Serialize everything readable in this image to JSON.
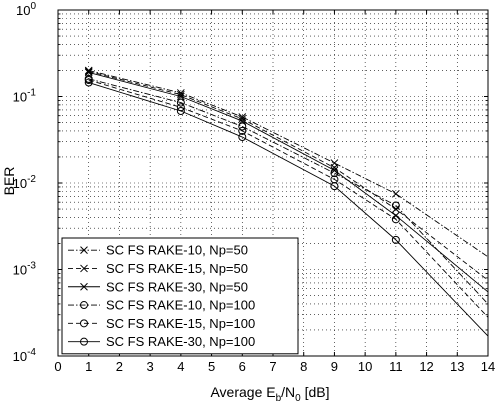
{
  "chart_data": {
    "type": "line",
    "title": "",
    "xlabel": "Average E_b/N_0 [dB]",
    "xlabel_parts": {
      "pre": "Average E",
      "sub1": "b",
      "mid": "/N",
      "sub2": "0",
      "post": " [dB]"
    },
    "ylabel": "BER",
    "xlim": [
      0,
      14
    ],
    "ylim": [
      0.0001,
      1
    ],
    "yscale": "log",
    "grid": "on",
    "legend_position": "bottom-left",
    "xticks": [
      "0",
      "1",
      "2",
      "3",
      "4",
      "5",
      "6",
      "7",
      "8",
      "9",
      "10",
      "11",
      "12",
      "13",
      "14"
    ],
    "yticks": [
      {
        "value": 1,
        "base": "10",
        "exp": "0"
      },
      {
        "value": 0.1,
        "base": "10",
        "exp": "-1"
      },
      {
        "value": 0.01,
        "base": "10",
        "exp": "-2"
      },
      {
        "value": 0.001,
        "base": "10",
        "exp": "-3"
      },
      {
        "value": 0.0001,
        "base": "10",
        "exp": "-4"
      }
    ],
    "series": [
      {
        "name": "SC FS RAKE-10, Np=50",
        "dash": "dashdot",
        "marker": "x",
        "x": [
          1,
          4,
          6,
          9,
          11,
          14
        ],
        "y": [
          0.2,
          0.11,
          0.058,
          0.017,
          0.0075,
          0.0014
        ]
      },
      {
        "name": "SC FS RAKE-15, Np=50",
        "dash": "dashed",
        "marker": "x",
        "x": [
          1,
          4,
          6,
          9,
          11,
          14
        ],
        "y": [
          0.195,
          0.105,
          0.055,
          0.015,
          0.005,
          0.00075
        ]
      },
      {
        "name": "SC FS RAKE-30, Np=50",
        "dash": "solid",
        "marker": "x",
        "x": [
          1,
          4,
          6,
          9,
          11,
          14
        ],
        "y": [
          0.19,
          0.1,
          0.052,
          0.014,
          0.0042,
          0.00055
        ]
      },
      {
        "name": "SC FS RAKE-10, Np=100",
        "dash": "dashdot",
        "marker": "o",
        "x": [
          1,
          4,
          6,
          9,
          11,
          14
        ],
        "y": [
          0.16,
          0.085,
          0.045,
          0.013,
          0.0055,
          0.0004
        ]
      },
      {
        "name": "SC FS RAKE-15, Np=100",
        "dash": "dashed",
        "marker": "o",
        "x": [
          1,
          4,
          6,
          9,
          11,
          14
        ],
        "y": [
          0.155,
          0.075,
          0.04,
          0.011,
          0.0038,
          0.00028
        ]
      },
      {
        "name": "SC FS RAKE-30, Np=100",
        "dash": "solid",
        "marker": "o",
        "x": [
          1,
          4,
          6,
          9,
          11,
          14
        ],
        "y": [
          0.145,
          0.068,
          0.034,
          0.0092,
          0.0022,
          0.00017
        ]
      }
    ]
  }
}
